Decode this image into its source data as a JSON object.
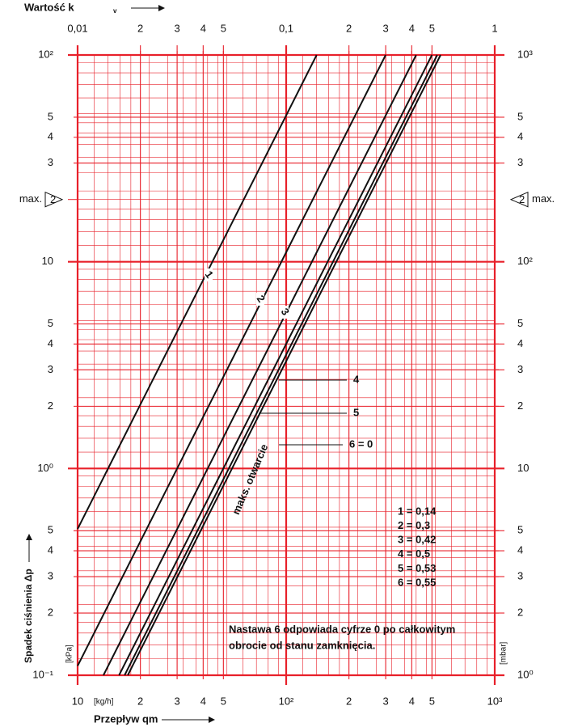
{
  "chart_data": {
    "type": "line",
    "x2_title": "Wartość k",
    "x2_title_sub": "v",
    "x_title": "Przepływ qm",
    "x_unit": "[kg/h]",
    "y_title": "Spadek ciśnienia Δp",
    "y_unit": "[kPa]",
    "y2_unit": "[mbar]",
    "xscale": "log",
    "yscale": "log",
    "grid": true,
    "color": "#e8202a",
    "xlim": [
      10,
      1000
    ],
    "xticks": [
      10,
      {
        "value": 20,
        "label": "2"
      },
      {
        "value": 30,
        "label": "3"
      },
      {
        "value": 40,
        "label": "4"
      },
      {
        "value": 50,
        "label": "5"
      },
      {
        "value": 100,
        "label": "10²"
      },
      {
        "value": 200,
        "label": "2"
      },
      {
        "value": 300,
        "label": "3"
      },
      {
        "value": 400,
        "label": "4"
      },
      {
        "value": 500,
        "label": "5"
      },
      {
        "value": 1000,
        "label": "10³"
      }
    ],
    "x2lim": [
      0.01,
      1
    ],
    "x2ticks": [
      {
        "value": 0.01,
        "label": "0,01"
      },
      {
        "value": 0.02,
        "label": "2"
      },
      {
        "value": 0.03,
        "label": "3"
      },
      {
        "value": 0.04,
        "label": "4"
      },
      {
        "value": 0.05,
        "label": "5"
      },
      {
        "value": 0.1,
        "label": "0,1"
      },
      {
        "value": 0.2,
        "label": "2"
      },
      {
        "value": 0.3,
        "label": "3"
      },
      {
        "value": 0.4,
        "label": "4"
      },
      {
        "value": 0.5,
        "label": "5"
      },
      1
    ],
    "ylim": [
      0.1,
      100
    ],
    "yticks": [
      {
        "value": 100,
        "label": "10²"
      },
      {
        "value": 50,
        "label": "5"
      },
      {
        "value": 40,
        "label": "4"
      },
      {
        "value": 30,
        "label": "3"
      },
      10,
      5,
      4,
      3,
      2,
      {
        "value": 1,
        "label": "10⁰"
      },
      {
        "value": 0.5,
        "label": "5"
      },
      {
        "value": 0.4,
        "label": "4"
      },
      {
        "value": 0.3,
        "label": "3"
      },
      {
        "value": 0.2,
        "label": "2"
      },
      {
        "value": 0.1,
        "label": "10⁻¹"
      }
    ],
    "y2lim": [
      1,
      1000
    ],
    "y2ticks": [
      {
        "value": 1000,
        "label": "10³"
      },
      {
        "value": 500,
        "label": "5"
      },
      {
        "value": 400,
        "label": "4"
      },
      {
        "value": 300,
        "label": "3"
      },
      {
        "value": 100,
        "label": "10²"
      },
      {
        "value": 50,
        "label": "5"
      },
      {
        "value": 40,
        "label": "4"
      },
      {
        "value": 30,
        "label": "3"
      },
      {
        "value": 20,
        "label": "2"
      },
      10,
      5,
      4,
      3,
      2,
      {
        "value": 1,
        "label": "10⁰"
      }
    ],
    "max_marker": {
      "value": 20,
      "label": "max.",
      "symbol": "2"
    },
    "series": [
      {
        "name": "1",
        "color": "#111111",
        "x": [
          10,
          140
        ],
        "values": [
          0.51,
          100
        ]
      },
      {
        "name": "2",
        "color": "#111111",
        "x": [
          10,
          300
        ],
        "values": [
          0.111,
          100
        ]
      },
      {
        "name": "3",
        "color": "#111111",
        "x": [
          13.3,
          420
        ],
        "values": [
          0.1,
          100
        ]
      },
      {
        "name": "4",
        "color": "#111111",
        "x": [
          15.8,
          500
        ],
        "values": [
          0.1,
          100
        ]
      },
      {
        "name": "5",
        "color": "#111111",
        "x": [
          16.8,
          530
        ],
        "values": [
          0.1,
          100
        ]
      },
      {
        "name": "6 = 0",
        "color": "#111111",
        "x": [
          17.4,
          550
        ],
        "values": [
          0.1,
          100
        ]
      }
    ],
    "max_open_label": "maks. otwarcie",
    "legend": [
      "1 = 0,14",
      "2 = 0,3",
      "3 = 0,42",
      "4 = 0,5",
      "5 = 0,53",
      "6 = 0,55"
    ],
    "note": [
      "Nastawa 6 odpowiada cyfrze 0 po całkowitym",
      "obrocie od stanu zamknięcia."
    ]
  }
}
